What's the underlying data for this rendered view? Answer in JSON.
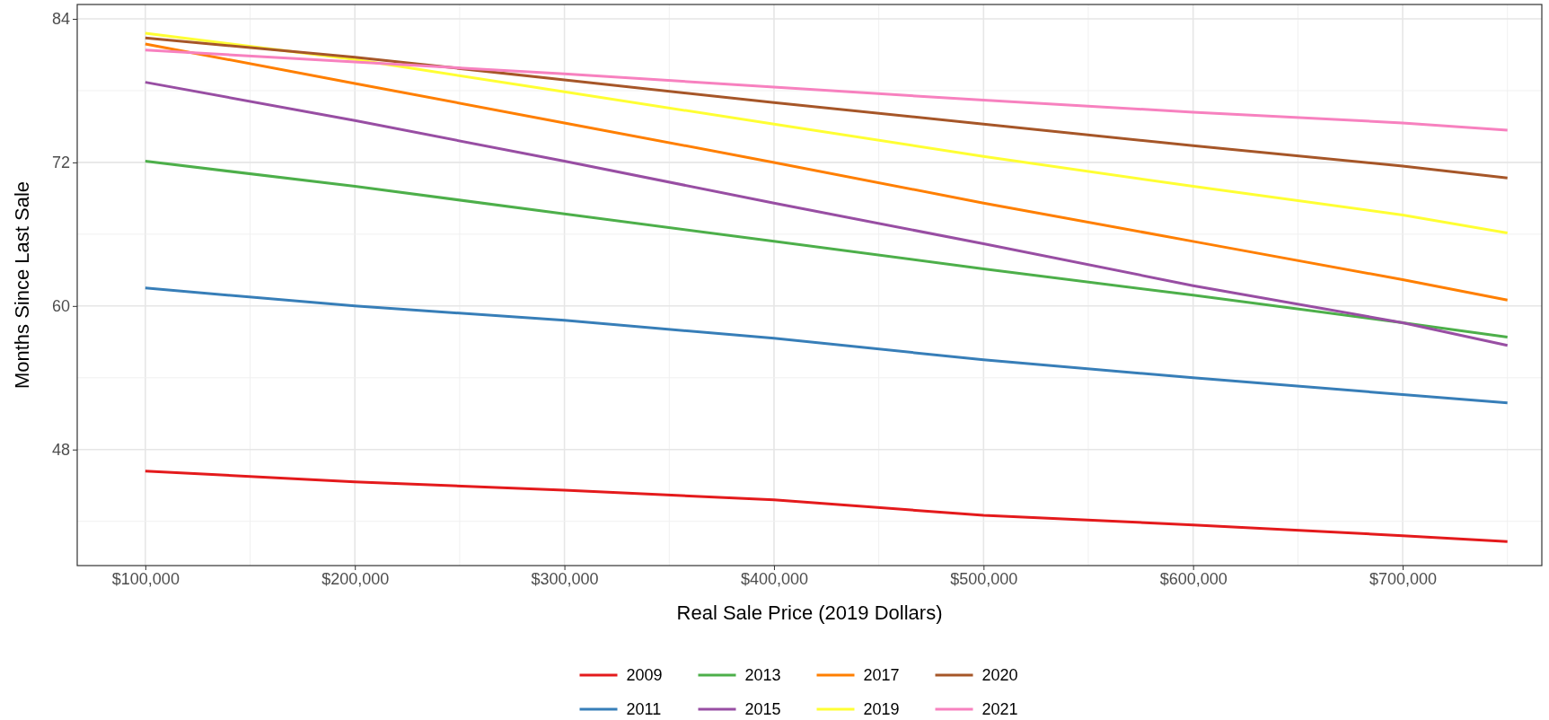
{
  "chart_data": {
    "type": "line",
    "xlabel": "Real Sale Price (2019 Dollars)",
    "ylabel": "Months Since Last Sale",
    "x": [
      100000,
      200000,
      300000,
      400000,
      500000,
      600000,
      700000,
      750000
    ],
    "xlim": [
      67500,
      766400
    ],
    "xticks": [
      {
        "value": 100000,
        "label": "$100,000"
      },
      {
        "value": 200000,
        "label": "$200,000"
      },
      {
        "value": 300000,
        "label": "$300,000"
      },
      {
        "value": 400000,
        "label": "$400,000"
      },
      {
        "value": 500000,
        "label": "$500,000"
      },
      {
        "value": 600000,
        "label": "$600,000"
      },
      {
        "value": 700000,
        "label": "$700,000"
      }
    ],
    "ylim": [
      38.3,
      85.2
    ],
    "yticks": [
      48,
      60,
      72,
      84
    ],
    "grid": true,
    "legend": "bottom",
    "line_style": "solid",
    "marker": "none",
    "series": [
      {
        "name": "2009",
        "color": "#e41a1c",
        "values": [
          46.2,
          45.3,
          44.6,
          43.8,
          42.5,
          41.7,
          40.8,
          40.3
        ]
      },
      {
        "name": "2011",
        "color": "#377eb8",
        "values": [
          61.5,
          60.0,
          58.8,
          57.3,
          55.5,
          54.0,
          52.6,
          51.9
        ]
      },
      {
        "name": "2013",
        "color": "#4daf4a",
        "values": [
          72.1,
          70.0,
          67.7,
          65.4,
          63.1,
          60.9,
          58.6,
          57.4
        ]
      },
      {
        "name": "2015",
        "color": "#984ea3",
        "values": [
          78.7,
          75.5,
          72.1,
          68.6,
          65.2,
          61.7,
          58.6,
          56.7
        ]
      },
      {
        "name": "2017",
        "color": "#ff7f00",
        "values": [
          81.9,
          78.6,
          75.3,
          72.0,
          68.6,
          65.4,
          62.2,
          60.5
        ]
      },
      {
        "name": "2019",
        "color": "#ffff33",
        "values": [
          82.8,
          80.6,
          77.9,
          75.2,
          72.5,
          70.0,
          67.6,
          66.1
        ]
      },
      {
        "name": "2020",
        "color": "#a65628",
        "values": [
          82.4,
          80.8,
          78.9,
          77.0,
          75.2,
          73.4,
          71.7,
          70.7
        ]
      },
      {
        "name": "2021",
        "color": "#f781bf",
        "values": [
          81.4,
          80.4,
          79.4,
          78.3,
          77.2,
          76.2,
          75.3,
          74.7
        ]
      }
    ]
  }
}
